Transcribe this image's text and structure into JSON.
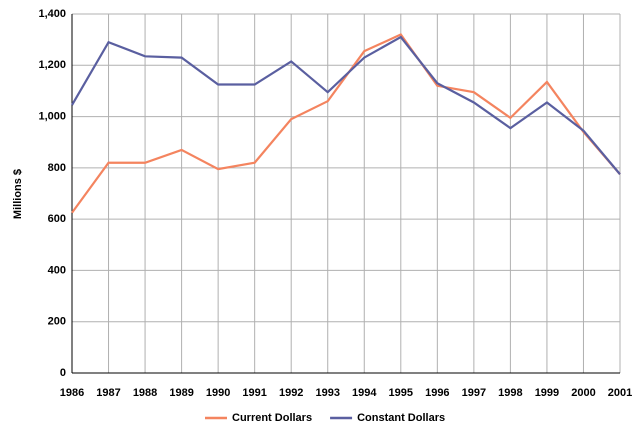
{
  "chart_data": {
    "type": "line",
    "y_label": "Millions $",
    "categories": [
      "1986",
      "1987",
      "1988",
      "1989",
      "1990",
      "1991",
      "1992",
      "1993",
      "1994",
      "1995",
      "1996",
      "1997",
      "1998",
      "1999",
      "2000",
      "2001"
    ],
    "series": [
      {
        "name": "Current Dollars",
        "color": "#f4845f",
        "values": [
          625,
          820,
          820,
          870,
          795,
          820,
          990,
          1060,
          1255,
          1320,
          1120,
          1095,
          995,
          1135,
          940,
          775
        ]
      },
      {
        "name": "Constant Dollars",
        "color": "#5a5fa0",
        "values": [
          1045,
          1290,
          1235,
          1230,
          1125,
          1125,
          1215,
          1095,
          1230,
          1310,
          1130,
          1055,
          955,
          1055,
          945,
          775
        ]
      }
    ],
    "ylim": [
      0,
      1400
    ],
    "yticks": [
      0,
      200,
      400,
      600,
      800,
      {
        "value": 1000,
        "label": "1,000"
      },
      {
        "value": 1200,
        "label": "1,200"
      },
      {
        "value": 1400,
        "label": "1,400"
      }
    ],
    "grid": true,
    "legend": "bottom"
  }
}
